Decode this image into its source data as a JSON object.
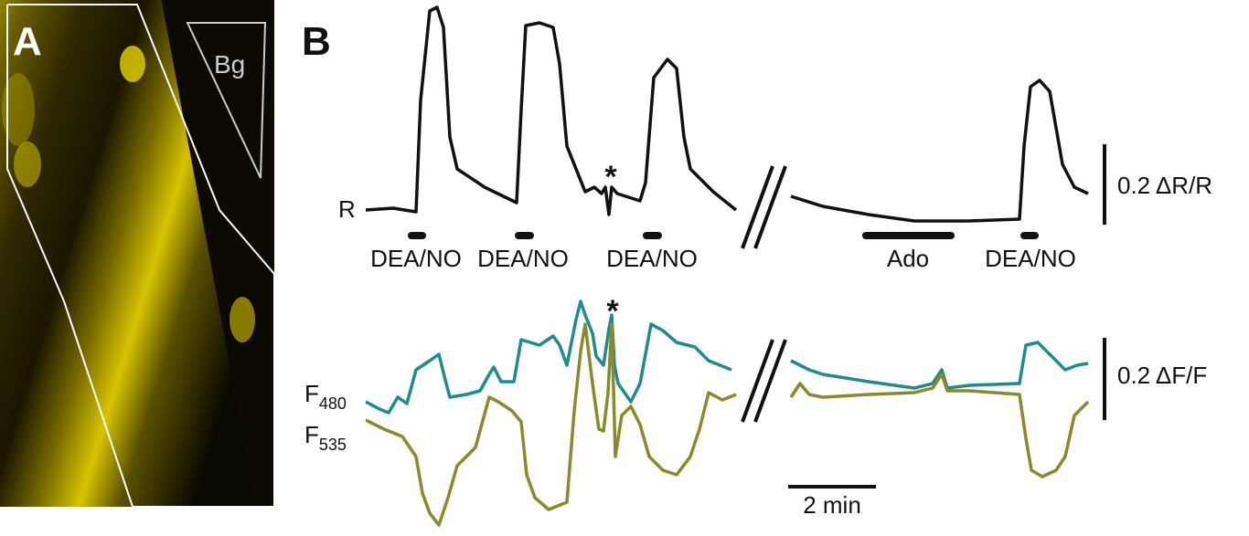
{
  "panel_a": {
    "label": "A",
    "region_label": "Bg"
  },
  "panel_b": {
    "label": "B",
    "trace_labels": {
      "ratio": "R",
      "f480": {
        "base": "F",
        "sub": "480"
      },
      "f535": {
        "base": "F",
        "sub": "535"
      }
    },
    "stimuli": [
      "DEA/NO",
      "DEA/NO",
      "DEA/NO",
      "Ado",
      "DEA/NO"
    ],
    "asterisks": [
      "*",
      "*"
    ],
    "scale_bars": {
      "ratio": "0.2 ΔR/R",
      "fluorescence": "0.2 ΔF/F",
      "time": "2 min"
    }
  }
}
